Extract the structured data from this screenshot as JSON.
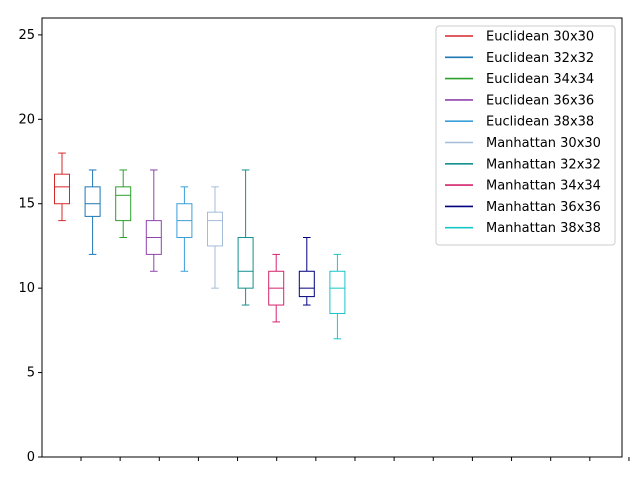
{
  "chart_data": {
    "type": "box",
    "xlabel": "",
    "ylabel": "",
    "ylim": [
      0,
      26
    ],
    "yticks": [
      0,
      5,
      10,
      15,
      20,
      25
    ],
    "grid": false,
    "legend_position": "top-right",
    "series": [
      {
        "name": "Euclidean 30x30",
        "color": "#d62728",
        "min": 14,
        "q1": 15,
        "median": 16,
        "q3": 16.75,
        "max": 18
      },
      {
        "name": "Euclidean 32x32",
        "color": "#1f77b4",
        "min": 12,
        "q1": 14.25,
        "median": 15,
        "q3": 16,
        "max": 17
      },
      {
        "name": "Euclidean 34x34",
        "color": "#2ca02c",
        "min": 13,
        "q1": 14,
        "median": 15.5,
        "q3": 16,
        "max": 17
      },
      {
        "name": "Euclidean 36x36",
        "color": "#8e44ad",
        "min": 11,
        "q1": 12,
        "median": 13,
        "q3": 14,
        "max": 17
      },
      {
        "name": "Euclidean 38x38",
        "color": "#3a9fd8",
        "min": 11,
        "q1": 13,
        "median": 14,
        "q3": 15,
        "max": 16
      },
      {
        "name": "Manhattan 30x30",
        "color": "#a4bcd8",
        "min": 10,
        "q1": 12.5,
        "median": 14,
        "q3": 14.5,
        "max": 16
      },
      {
        "name": "Manhattan 32x32",
        "color": "#139090",
        "min": 9,
        "q1": 10,
        "median": 11,
        "q3": 13,
        "max": 17
      },
      {
        "name": "Manhattan 34x34",
        "color": "#d6246e",
        "min": 8,
        "q1": 9,
        "median": 10,
        "q3": 11,
        "max": 12
      },
      {
        "name": "Manhattan 36x36",
        "color": "#000080",
        "min": 9,
        "q1": 9.5,
        "median": 10,
        "q3": 11,
        "max": 13
      },
      {
        "name": "Manhattan 38x38",
        "color": "#17c6c6",
        "min": 7,
        "q1": 8.5,
        "median": 10,
        "q3": 11,
        "max": 12
      }
    ]
  }
}
